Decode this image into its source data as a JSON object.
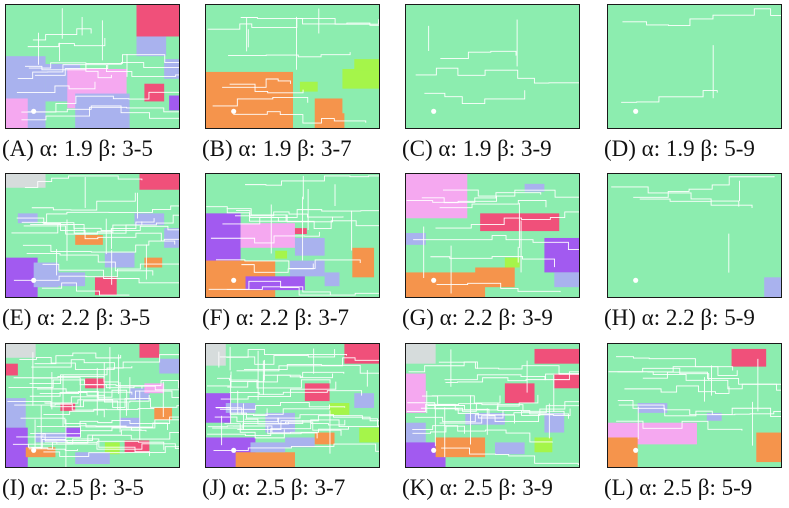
{
  "colors": {
    "base": "#8cedaf",
    "border": "#ffffff",
    "pink": "#f5a8f0",
    "red": "#f0507a",
    "lavender": "#a9b2ee",
    "orange": "#f5944c",
    "purple": "#a25af0",
    "lime": "#a5f54a",
    "gray": "#d6dcdc"
  },
  "panels": [
    {
      "caption": "(A) α: 1.9 β: 3-5"
    },
    {
      "caption": "(B) α: 1.9 β: 3-7"
    },
    {
      "caption": "(C) α: 1.9 β: 3-9"
    },
    {
      "caption": "(D) α: 1.9 β: 5-9"
    },
    {
      "caption": "(E) α: 2.2 β: 3-5"
    },
    {
      "caption": "(F) α: 2.2 β: 3-7"
    },
    {
      "caption": "(G) α: 2.2 β: 3-9"
    },
    {
      "caption": "(H) α: 2.2 β: 5-9"
    },
    {
      "caption": "(I) α: 2.5 β: 3-5"
    },
    {
      "caption": "(J) α: 2.5 β: 3-7"
    },
    {
      "caption": "(K) α: 2.5 β: 3-9"
    },
    {
      "caption": "(L) α: 2.5 β: 5-9"
    }
  ]
}
